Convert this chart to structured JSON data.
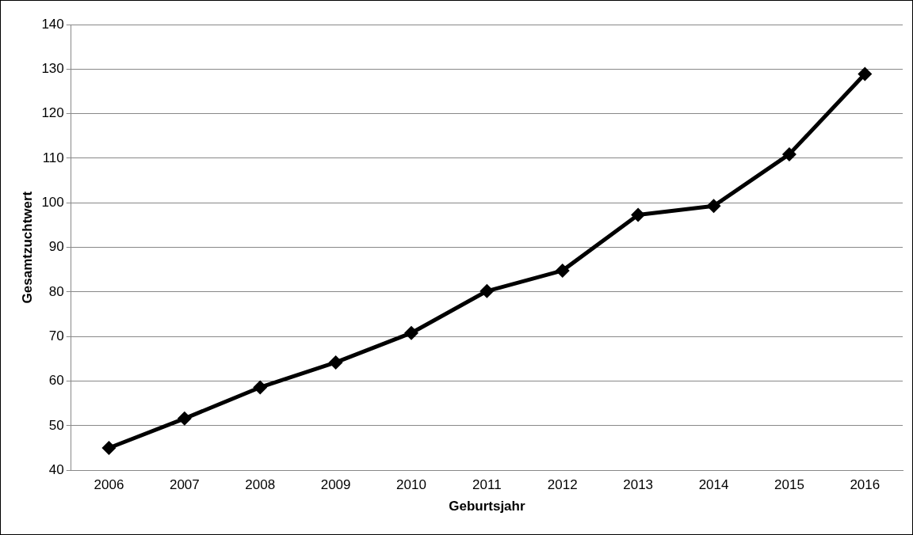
{
  "chart_data": {
    "type": "line",
    "xlabel": "Geburtsjahr",
    "ylabel": "Gesamtzuchtwert",
    "categories": [
      "2006",
      "2007",
      "2008",
      "2009",
      "2010",
      "2011",
      "2012",
      "2013",
      "2014",
      "2015",
      "2016"
    ],
    "values": [
      45,
      51.6,
      58.6,
      64.2,
      70.8,
      80.2,
      84.8,
      97.3,
      99.3,
      110.9,
      128.9
    ],
    "color": "#000000",
    "ylim": [
      40,
      140
    ],
    "yticks": [
      40,
      50,
      60,
      70,
      80,
      90,
      100,
      110,
      120,
      130,
      140
    ],
    "grid": "y",
    "legend": false,
    "marker": "diamond",
    "line_style": "solid"
  }
}
